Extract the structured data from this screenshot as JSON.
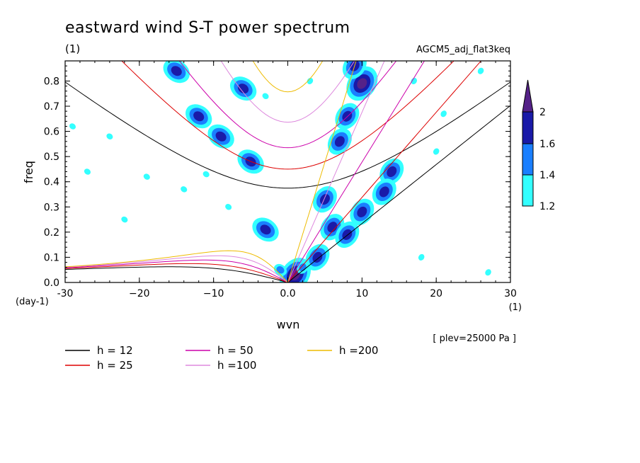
{
  "chart_data": {
    "type": "contour",
    "title": "eastward wind S-T power spectrum",
    "subtitle_left": "(1)",
    "subtitle_right": "AGCM5_adj_flat3keq",
    "xlabel": "wvn",
    "ylabel": "freq",
    "x_unit": "(1)",
    "y_unit": "(day-1)",
    "xlim": [
      -30,
      30
    ],
    "ylim": [
      0,
      0.88
    ],
    "x_ticks": [
      -30,
      -20,
      -10,
      0,
      10,
      20,
      30
    ],
    "x_tick_labels": [
      "-30",
      "−20",
      "−10",
      "0.0",
      "10",
      "20",
      "30"
    ],
    "y_ticks": [
      0,
      0.1,
      0.2,
      0.3,
      0.4,
      0.5,
      0.6,
      0.7,
      0.8
    ],
    "y_tick_labels": [
      "0.0",
      "0.1",
      "0.2",
      "0.3",
      "0.4",
      "0.5",
      "0.6",
      "0.7",
      "0.8"
    ],
    "note": "[ plev=25000 Pa ]",
    "colorbar": {
      "levels": [
        1.2,
        1.4,
        1.6,
        2
      ],
      "level_labels": [
        "1.2",
        "1.4",
        "1.6",
        "2"
      ],
      "colors": [
        "#33ffff",
        "#1a7fff",
        "#1a1aa8",
        "#552288"
      ]
    },
    "dispersion_curves": [
      {
        "h": 12,
        "label": "h = 12",
        "color": "#000000"
      },
      {
        "h": 25,
        "label": "h = 25",
        "color": "#dd0000"
      },
      {
        "h": 50,
        "label": "h = 50",
        "color": "#cc00aa"
      },
      {
        "h": 100,
        "label": "h =100",
        "color": "#dd88dd"
      },
      {
        "h": 200,
        "label": "h =200",
        "color": "#eebb00"
      }
    ],
    "shaded_regions": [
      {
        "x": -15,
        "y": 0.84,
        "level": 1.6
      },
      {
        "x": -12,
        "y": 0.66,
        "level": 1.6
      },
      {
        "x": -9,
        "y": 0.58,
        "level": 1.6
      },
      {
        "x": -5,
        "y": 0.48,
        "level": 1.6
      },
      {
        "x": -3,
        "y": 0.21,
        "level": 1.6
      },
      {
        "x": -6,
        "y": 0.77,
        "level": 1.6
      },
      {
        "x": 1,
        "y": 0.03,
        "level": 2
      },
      {
        "x": 5,
        "y": 0.33,
        "level": 1.6
      },
      {
        "x": 6,
        "y": 0.22,
        "level": 1.6
      },
      {
        "x": 7,
        "y": 0.56,
        "level": 1.6
      },
      {
        "x": 8,
        "y": 0.66,
        "level": 1.6
      },
      {
        "x": 10,
        "y": 0.79,
        "level": 2
      },
      {
        "x": 14,
        "y": 0.44,
        "level": 1.6
      },
      {
        "x": 10,
        "y": 0.28,
        "level": 1.6
      },
      {
        "x": 13,
        "y": 0.36,
        "level": 1.6
      },
      {
        "x": 9,
        "y": 0.86,
        "level": 1.6
      },
      {
        "x": 4,
        "y": 0.1,
        "level": 1.6
      },
      {
        "x": 8,
        "y": 0.19,
        "level": 1.6
      },
      {
        "x": 2,
        "y": 0.06,
        "level": 1.4
      },
      {
        "x": -1,
        "y": 0.05,
        "level": 1.4
      },
      {
        "x": -19,
        "y": 0.42,
        "level": 1.2
      },
      {
        "x": -14,
        "y": 0.37,
        "level": 1.2
      },
      {
        "x": -24,
        "y": 0.58,
        "level": 1.2
      },
      {
        "x": -27,
        "y": 0.44,
        "level": 1.2
      },
      {
        "x": -11,
        "y": 0.43,
        "level": 1.2
      },
      {
        "x": -3,
        "y": 0.74,
        "level": 1.2
      },
      {
        "x": 3,
        "y": 0.8,
        "level": 1.2
      },
      {
        "x": 17,
        "y": 0.8,
        "level": 1.2
      },
      {
        "x": 20,
        "y": 0.52,
        "level": 1.2
      },
      {
        "x": 18,
        "y": 0.1,
        "level": 1.2
      },
      {
        "x": 27,
        "y": 0.04,
        "level": 1.2
      },
      {
        "x": -29,
        "y": 0.62,
        "level": 1.2
      },
      {
        "x": -22,
        "y": 0.25,
        "level": 1.2
      },
      {
        "x": -8,
        "y": 0.3,
        "level": 1.2
      },
      {
        "x": 21,
        "y": 0.67,
        "level": 1.2
      },
      {
        "x": 26,
        "y": 0.84,
        "level": 1.2
      }
    ]
  },
  "legend": {
    "items": [
      {
        "label": "h = 12",
        "color": "#000000"
      },
      {
        "label": "h = 25",
        "color": "#dd0000"
      },
      {
        "label": "h = 50",
        "color": "#cc00aa"
      },
      {
        "label": "h =100",
        "color": "#dd88dd"
      },
      {
        "label": "h =200",
        "color": "#eebb00"
      }
    ]
  }
}
